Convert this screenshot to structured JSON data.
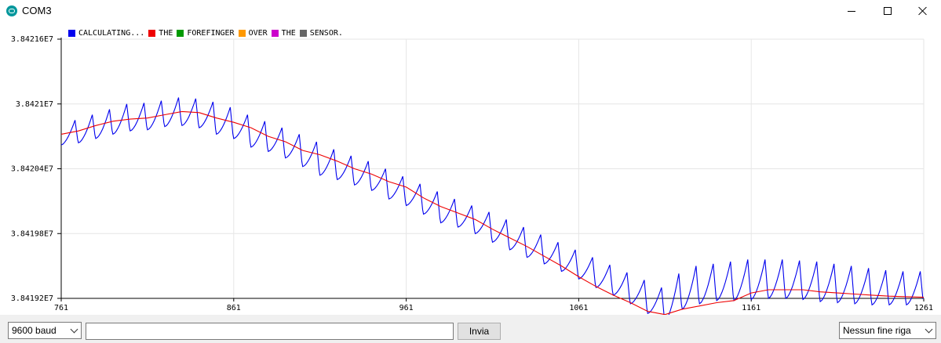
{
  "window": {
    "title": "COM3",
    "icon": "arduino-icon",
    "controls": [
      "minimize-icon",
      "maximize-icon",
      "close-icon"
    ]
  },
  "legend": [
    {
      "label": "CALCULATING...",
      "color": "#0000ee"
    },
    {
      "label": "THE",
      "color": "#ee0000"
    },
    {
      "label": "FOREFINGER",
      "color": "#009900"
    },
    {
      "label": "OVER",
      "color": "#ff9900"
    },
    {
      "label": "THE",
      "color": "#cc00cc"
    },
    {
      "label": "SENSOR.",
      "color": "#666666"
    }
  ],
  "chart_data": {
    "type": "line",
    "title": "",
    "xlabel": "",
    "ylabel": "",
    "xlim": [
      761,
      1261
    ],
    "ylim": [
      38419200,
      38421600
    ],
    "x_ticks": [
      "761",
      "861",
      "961",
      "1061",
      "1161",
      "1261"
    ],
    "y_ticks": [
      "3.84216E7",
      "3.8421E7",
      "3.84204E7",
      "3.84198E7",
      "3.84192E7"
    ],
    "y_tick_values": [
      38421600,
      38421000,
      38420400,
      38419800,
      38419200
    ],
    "grid": true,
    "legend_position": "top-left",
    "series": [
      {
        "name": "CALCULATING...",
        "color": "#0000ee",
        "pattern": "sawtooth",
        "period": 10,
        "x": [
          761,
          771,
          781,
          791,
          801,
          811,
          821,
          831,
          841,
          851,
          861,
          871,
          881,
          891,
          901,
          911,
          921,
          931,
          941,
          951,
          961,
          971,
          981,
          991,
          1001,
          1011,
          1021,
          1031,
          1041,
          1051,
          1061,
          1071,
          1081,
          1091,
          1101,
          1111,
          1121,
          1131,
          1141,
          1151,
          1161,
          1171,
          1181,
          1191,
          1201,
          1211,
          1221,
          1231,
          1241,
          1251,
          1261
        ],
        "low": [
          38420620,
          38420640,
          38420680,
          38420720,
          38420750,
          38420760,
          38420790,
          38420800,
          38420780,
          38420720,
          38420680,
          38420600,
          38420560,
          38420500,
          38420420,
          38420340,
          38420300,
          38420250,
          38420200,
          38420120,
          38420060,
          38419980,
          38419900,
          38419860,
          38419800,
          38419720,
          38419650,
          38419580,
          38419520,
          38419450,
          38419380,
          38419300,
          38419230,
          38419150,
          38419060,
          38418990,
          38419100,
          38419150,
          38419180,
          38419180,
          38419190,
          38419200,
          38419200,
          38419190,
          38419170,
          38419160,
          38419150,
          38419140,
          38419140,
          38419140,
          38419150
        ],
        "high": [
          38420850,
          38420900,
          38420950,
          38421000,
          38421010,
          38421030,
          38421060,
          38421050,
          38421020,
          38420970,
          38420900,
          38420840,
          38420780,
          38420720,
          38420650,
          38420580,
          38420520,
          38420470,
          38420400,
          38420330,
          38420260,
          38420190,
          38420120,
          38420060,
          38420000,
          38419930,
          38419860,
          38419790,
          38419720,
          38419650,
          38419580,
          38419510,
          38419440,
          38419370,
          38419300,
          38419430,
          38419500,
          38419520,
          38419540,
          38419560,
          38419560,
          38419560,
          38419550,
          38419540,
          38419520,
          38419500,
          38419480,
          38419460,
          38419450,
          38419450,
          38419450
        ]
      },
      {
        "name": "THE",
        "color": "#ee0000",
        "x": [
          761,
          771,
          781,
          791,
          801,
          811,
          821,
          831,
          841,
          851,
          861,
          871,
          881,
          891,
          901,
          911,
          921,
          931,
          941,
          951,
          961,
          971,
          981,
          991,
          1001,
          1011,
          1021,
          1031,
          1041,
          1051,
          1061,
          1071,
          1081,
          1091,
          1101,
          1111,
          1121,
          1131,
          1141,
          1151,
          1161,
          1171,
          1181,
          1191,
          1201,
          1211,
          1221,
          1231,
          1241,
          1261
        ],
        "y": [
          38420720,
          38420750,
          38420800,
          38420840,
          38420860,
          38420870,
          38420900,
          38420930,
          38420920,
          38420870,
          38420830,
          38420780,
          38420700,
          38420650,
          38420570,
          38420530,
          38420470,
          38420400,
          38420350,
          38420280,
          38420230,
          38420130,
          38420050,
          38419990,
          38419930,
          38419840,
          38419760,
          38419680,
          38419590,
          38419500,
          38419400,
          38419310,
          38419230,
          38419160,
          38419080,
          38419050,
          38419100,
          38419130,
          38419160,
          38419180,
          38419250,
          38419280,
          38419280,
          38419280,
          38419260,
          38419250,
          38419240,
          38419230,
          38419220,
          38419210
        ]
      }
    ]
  },
  "bottom_bar": {
    "baud": "9600 baud",
    "input_value": "",
    "send_label": "Invia",
    "line_ending": "Nessun fine riga"
  }
}
